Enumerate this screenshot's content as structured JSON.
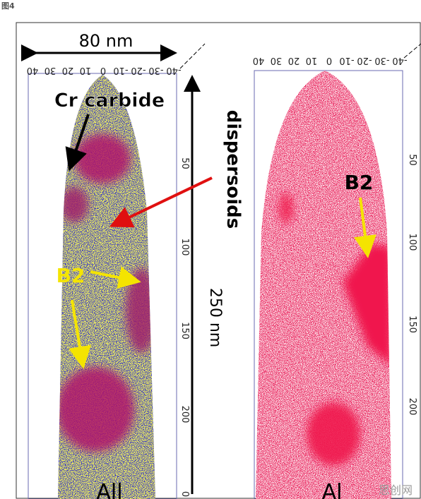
{
  "figure_label": "图4",
  "left_panel": {
    "scale_bar": "80 nm",
    "height_bar": "250 nm",
    "top_ticks": [
      -40,
      -30,
      -20,
      -10,
      0,
      10,
      20,
      30,
      40
    ],
    "side_ticks": [
      50,
      100,
      150,
      200
    ],
    "bottom_tick": 0,
    "labels": {
      "cr_carbide": "Cr carbide",
      "dispersoids": "dispersoids",
      "b2_upper": "B2"
    },
    "element": "All"
  },
  "right_panel": {
    "top_ticks": [
      -40,
      -30,
      -20,
      -10,
      0,
      10,
      20,
      30,
      40
    ],
    "side_ticks": [
      50,
      100,
      150,
      200
    ],
    "label": "B2",
    "element": "Al"
  },
  "watermark": "思创网"
}
